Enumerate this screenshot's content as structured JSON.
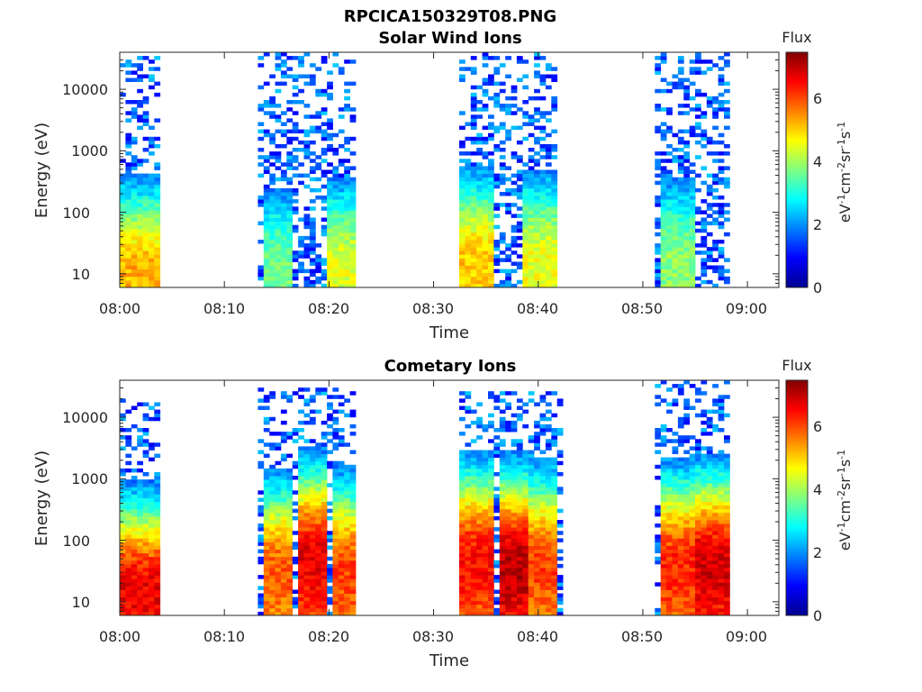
{
  "figure": {
    "filename": "RPCICA150329T08.PNG"
  },
  "colors": {
    "axis": "#262626",
    "colormap": "jet"
  },
  "chart_data": [
    {
      "type": "heatmap",
      "title": "Solar Wind Ions",
      "xlabel": "Time",
      "ylabel": "Energy (eV)",
      "yscale": "log",
      "ylim": [
        6,
        40000
      ],
      "xlim": [
        "08:00",
        "09:03"
      ],
      "xticks": [
        "08:00",
        "08:10",
        "08:20",
        "08:30",
        "08:40",
        "08:50",
        "09:00"
      ],
      "yticks": [
        "10",
        "100",
        "1000",
        "10000"
      ],
      "colorbar": {
        "label": "Flux",
        "units": "eV-1cm-2sr-1s-1",
        "range": [
          0,
          7.4
        ],
        "ticks": [
          "0",
          "2",
          "4",
          "6"
        ]
      },
      "bursts": [
        {
          "start_min": 0.0,
          "end_min": 3.5,
          "peak_flux": 5.2,
          "peak_energy_ev": 10
        },
        {
          "start_min": 13.5,
          "end_min": 16.0,
          "peak_flux": 3.6,
          "peak_energy_ev": 12
        },
        {
          "start_min": 19.5,
          "end_min": 22.5,
          "peak_flux": 4.4,
          "peak_energy_ev": 12
        },
        {
          "start_min": 32.0,
          "end_min": 35.5,
          "peak_flux": 5.0,
          "peak_energy_ev": 15
        },
        {
          "start_min": 38.0,
          "end_min": 41.5,
          "peak_flux": 4.5,
          "peak_energy_ev": 15
        },
        {
          "start_min": 51.5,
          "end_min": 54.5,
          "peak_flux": 3.8,
          "peak_energy_ev": 15
        }
      ],
      "sparse_extent": [
        {
          "start_min": 0.0,
          "end_min": 3.5,
          "top_energy_ev": 40000
        },
        {
          "start_min": 13.0,
          "end_min": 22.5,
          "top_energy_ev": 40000
        },
        {
          "start_min": 32.0,
          "end_min": 41.5,
          "top_energy_ev": 40000
        },
        {
          "start_min": 51.0,
          "end_min": 58.0,
          "top_energy_ev": 35000
        }
      ]
    },
    {
      "type": "heatmap",
      "title": "Cometary Ions",
      "xlabel": "Time",
      "ylabel": "Energy (eV)",
      "yscale": "log",
      "ylim": [
        6,
        40000
      ],
      "xlim": [
        "08:00",
        "09:03"
      ],
      "xticks": [
        "08:00",
        "08:10",
        "08:20",
        "08:30",
        "08:40",
        "08:50",
        "09:00"
      ],
      "yticks": [
        "10",
        "100",
        "1000",
        "10000"
      ],
      "colorbar": {
        "label": "Flux",
        "units": "eV-1cm-2sr-1s-1",
        "range": [
          0,
          7.4
        ],
        "ticks": [
          "0",
          "2",
          "4",
          "6"
        ]
      },
      "bursts": [
        {
          "start_min": 0.0,
          "end_min": 3.5,
          "peak_flux": 6.6,
          "peak_energy_ev": 15
        },
        {
          "start_min": 13.5,
          "end_min": 16.5,
          "peak_flux": 5.8,
          "peak_energy_ev": 30
        },
        {
          "start_min": 17.0,
          "end_min": 19.5,
          "peak_flux": 6.6,
          "peak_energy_ev": 50
        },
        {
          "start_min": 20.0,
          "end_min": 22.5,
          "peak_flux": 6.0,
          "peak_energy_ev": 30
        },
        {
          "start_min": 32.0,
          "end_min": 35.5,
          "peak_flux": 6.4,
          "peak_energy_ev": 50
        },
        {
          "start_min": 36.0,
          "end_min": 38.5,
          "peak_flux": 7.0,
          "peak_energy_ev": 40
        },
        {
          "start_min": 38.5,
          "end_min": 41.5,
          "peak_flux": 6.0,
          "peak_energy_ev": 40
        },
        {
          "start_min": 51.5,
          "end_min": 54.5,
          "peak_flux": 6.2,
          "peak_energy_ev": 40
        },
        {
          "start_min": 54.5,
          "end_min": 58.0,
          "peak_flux": 6.8,
          "peak_energy_ev": 40
        }
      ],
      "sparse_extent": [
        {
          "start_min": 0.0,
          "end_min": 3.5,
          "top_energy_ev": 20000
        },
        {
          "start_min": 13.0,
          "end_min": 22.5,
          "top_energy_ev": 30000
        },
        {
          "start_min": 32.0,
          "end_min": 42.0,
          "top_energy_ev": 25000
        },
        {
          "start_min": 51.0,
          "end_min": 58.0,
          "top_energy_ev": 35000
        }
      ]
    }
  ]
}
